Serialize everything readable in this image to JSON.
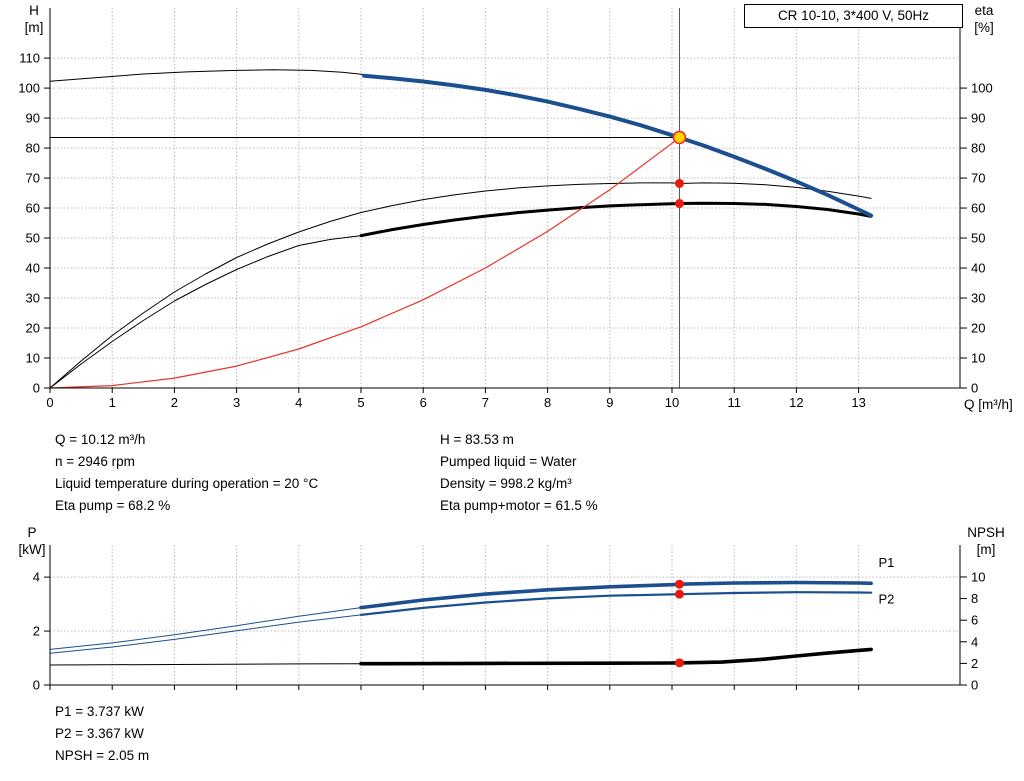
{
  "title_box": {
    "text": "CR 10-10, 3*400 V, 50Hz"
  },
  "axis_labels": {
    "h_line1": "H",
    "h_line2": "[m]",
    "eta_line1": "eta",
    "eta_line2": "[%]",
    "q_label": "Q [m³/h]",
    "p_line1": "P",
    "p_line2": "[kW]",
    "npsh_line1": "NPSH",
    "npsh_line2": "[m]"
  },
  "info_top_left": [
    "Q = 10.12 m³/h",
    "n = 2946 rpm",
    "Liquid temperature during operation = 20 °C",
    "Eta pump = 68.2 %"
  ],
  "info_top_right": [
    "H = 83.53 m",
    "Pumped liquid = Water",
    "Density = 998.2 kg/m³",
    "Eta pump+motor = 61.5 %"
  ],
  "info_bottom": [
    "P1 = 3.737 kW",
    "P2 = 3.367 kW",
    "NPSH = 2.05 m"
  ],
  "colors": {
    "curve_blue": "#1b4f8f",
    "curve_black": "#000000",
    "curve_red": "#e8342a",
    "duty_fill": "#ffd500",
    "duty_stroke": "#e8342a",
    "dot_red": "#e8190f",
    "grid": "#b9b9b9",
    "axis": "#000000",
    "guide_gray": "#555555"
  },
  "duty_point": {
    "Q_m3h": 10.12,
    "H_m": 83.53,
    "eta_pump_pct": 68.2,
    "eta_total_pct": 61.5,
    "P1_kW": 3.737,
    "P2_kW": 3.367,
    "NPSH_m": 2.05,
    "n_rpm": 2946
  },
  "chart_data": [
    {
      "type": "line",
      "name": "qh-eta-chart",
      "title": "CR 10-10, 3*400 V, 50Hz",
      "xlabel": "Q [m³/h]",
      "ylabel_left": "H [m]",
      "ylabel_right": "eta [%]",
      "xlim": [
        0,
        14.63
      ],
      "ylim_left": [
        0,
        126.7
      ],
      "ylim_right": [
        0,
        126.7
      ],
      "x_ticks": [
        0,
        1,
        2,
        3,
        4,
        5,
        6,
        7,
        8,
        9,
        10,
        11,
        12,
        13
      ],
      "show_x_labels": true,
      "y_ticks_left": [
        0,
        10,
        20,
        30,
        40,
        50,
        60,
        70,
        80,
        90,
        100,
        110
      ],
      "y_ticks_right": [
        0,
        10,
        20,
        30,
        40,
        50,
        60,
        70,
        80,
        90,
        100
      ],
      "grid": true,
      "guides": [
        {
          "name": "duty-vertical-line",
          "type": "v",
          "x": 10.12,
          "y_from": 0,
          "y_to": 126.7,
          "color": "#555555",
          "width": 1
        },
        {
          "name": "duty-horizontal-line",
          "type": "h",
          "y": 83.53,
          "x_from": 0,
          "x_to": 10.12,
          "color": "#000000",
          "width": 1
        }
      ],
      "series": [
        {
          "name": "h-curve-lead-in",
          "color": "#000000",
          "width": 1,
          "axis": "left",
          "points": [
            [
              0,
              102.3
            ],
            [
              0.7,
              103.4
            ],
            [
              1.5,
              104.7
            ],
            [
              2.2,
              105.4
            ],
            [
              3,
              105.9
            ],
            [
              3.6,
              106.1
            ],
            [
              4.2,
              105.9
            ],
            [
              4.7,
              105.3
            ],
            [
              5.1,
              104.4
            ]
          ]
        },
        {
          "name": "eta-pump-curve",
          "color": "#000000",
          "width": 1,
          "axis": "right",
          "points": [
            [
              0,
              0
            ],
            [
              0.5,
              9
            ],
            [
              1,
              17.5
            ],
            [
              1.5,
              25
            ],
            [
              2,
              32
            ],
            [
              2.5,
              38
            ],
            [
              3,
              43.5
            ],
            [
              3.5,
              48
            ],
            [
              4,
              52
            ],
            [
              4.5,
              55.5
            ],
            [
              5,
              58.5
            ],
            [
              5.5,
              60.8
            ],
            [
              6,
              62.8
            ],
            [
              6.5,
              64.4
            ],
            [
              7,
              65.7
            ],
            [
              7.5,
              66.7
            ],
            [
              8,
              67.4
            ],
            [
              8.5,
              67.9
            ],
            [
              9,
              68.2
            ],
            [
              9.5,
              68.4
            ],
            [
              10,
              68.4
            ],
            [
              10.12,
              68.2
            ],
            [
              10.5,
              68.4
            ],
            [
              11,
              68.3
            ],
            [
              11.5,
              67.8
            ],
            [
              12,
              66.9
            ],
            [
              12.5,
              65.6
            ],
            [
              13,
              64
            ],
            [
              13.2,
              63.2
            ]
          ]
        },
        {
          "name": "eta-total-curve-lead-in",
          "color": "#000000",
          "width": 1,
          "axis": "right",
          "points": [
            [
              0,
              0
            ],
            [
              0.5,
              8
            ],
            [
              1,
              15.5
            ],
            [
              1.5,
              22.5
            ],
            [
              2,
              29
            ],
            [
              2.5,
              34.5
            ],
            [
              3,
              39.5
            ],
            [
              3.5,
              43.8
            ],
            [
              4,
              47.5
            ],
            [
              4.5,
              49.5
            ],
            [
              5,
              50.8
            ]
          ]
        },
        {
          "name": "eta-total-curve",
          "color": "#000000",
          "width": 3,
          "axis": "right",
          "points": [
            [
              5,
              50.8
            ],
            [
              5.5,
              52.8
            ],
            [
              6,
              54.5
            ],
            [
              6.5,
              56
            ],
            [
              7,
              57.3
            ],
            [
              7.5,
              58.4
            ],
            [
              8,
              59.3
            ],
            [
              8.5,
              60.1
            ],
            [
              9,
              60.7
            ],
            [
              9.5,
              61.1
            ],
            [
              10,
              61.4
            ],
            [
              10.12,
              61.5
            ],
            [
              10.5,
              61.6
            ],
            [
              11,
              61.5
            ],
            [
              11.5,
              61.2
            ],
            [
              12,
              60.5
            ],
            [
              12.5,
              59.5
            ],
            [
              13,
              58
            ],
            [
              13.2,
              57.2
            ]
          ]
        },
        {
          "name": "system-curve",
          "color": "#e8342a",
          "width": 1.2,
          "axis": "left",
          "points": [
            [
              0,
              0
            ],
            [
              1,
              0.8
            ],
            [
              2,
              3.3
            ],
            [
              3,
              7.3
            ],
            [
              4,
              13
            ],
            [
              5,
              20.4
            ],
            [
              6,
              29.4
            ],
            [
              7,
              40
            ],
            [
              8,
              52.2
            ],
            [
              9,
              66.1
            ],
            [
              10,
              81.6
            ],
            [
              10.12,
              83.53
            ]
          ]
        },
        {
          "name": "h-curve",
          "color": "#1b4f8f",
          "width": 4,
          "axis": "left",
          "points": [
            [
              5.05,
              104.1
            ],
            [
              5.5,
              103.3
            ],
            [
              6,
              102.2
            ],
            [
              6.5,
              100.9
            ],
            [
              7,
              99.4
            ],
            [
              7.5,
              97.6
            ],
            [
              8,
              95.5
            ],
            [
              8.5,
              93.1
            ],
            [
              9,
              90.5
            ],
            [
              9.5,
              87.6
            ],
            [
              10,
              84.3
            ],
            [
              10.12,
              83.5
            ],
            [
              10.5,
              80.9
            ],
            [
              11,
              77.1
            ],
            [
              11.5,
              73.1
            ],
            [
              12,
              68.9
            ],
            [
              12.5,
              64.4
            ],
            [
              13,
              59.5
            ],
            [
              13.2,
              57.5
            ]
          ]
        }
      ],
      "markers": [
        {
          "name": "duty-point-marker",
          "x": 10.12,
          "y": 83.53,
          "axis": "left",
          "r": 6,
          "fill": "#ffd500",
          "stroke": "#e8342a",
          "sw": 1.6
        },
        {
          "name": "eta-pump-point",
          "x": 10.12,
          "y": 68.2,
          "axis": "right",
          "r": 4.5,
          "fill": "#e8190f"
        },
        {
          "name": "eta-total-point",
          "x": 10.12,
          "y": 61.5,
          "axis": "right",
          "r": 4.5,
          "fill": "#e8190f"
        }
      ],
      "labels": []
    },
    {
      "type": "line",
      "name": "power-npsh-chart",
      "title": "",
      "xlabel": "",
      "ylabel_left": "P [kW]",
      "ylabel_right": "NPSH [m]",
      "xlim": [
        0,
        14.63
      ],
      "ylim_left": [
        0,
        5.19
      ],
      "ylim_right": [
        0,
        12.96
      ],
      "x_ticks": [
        0,
        1,
        2,
        3,
        4,
        5,
        6,
        7,
        8,
        9,
        10,
        11,
        12,
        13
      ],
      "show_x_labels": false,
      "y_ticks_left": [
        0,
        2,
        4
      ],
      "y_ticks_right": [
        0,
        2,
        4,
        6,
        8,
        10
      ],
      "grid": true,
      "guides": [],
      "series": [
        {
          "name": "p1-curve-lead-in",
          "color": "#1b4f8f",
          "width": 1,
          "axis": "left",
          "points": [
            [
              0,
              1.32
            ],
            [
              1,
              1.56
            ],
            [
              2,
              1.86
            ],
            [
              3,
              2.2
            ],
            [
              4,
              2.55
            ],
            [
              5,
              2.87
            ]
          ]
        },
        {
          "name": "p2-curve-lead-in",
          "color": "#1b4f8f",
          "width": 1,
          "axis": "left",
          "points": [
            [
              0,
              1.18
            ],
            [
              1,
              1.41
            ],
            [
              2,
              1.69
            ],
            [
              3,
              2.01
            ],
            [
              4,
              2.33
            ],
            [
              5,
              2.6
            ]
          ]
        },
        {
          "name": "npsh-curve-lead-in",
          "color": "#000000",
          "width": 1,
          "axis": "right",
          "points": [
            [
              0,
              1.85
            ],
            [
              2,
              1.9
            ],
            [
              4,
              1.95
            ],
            [
              5,
              1.97
            ]
          ]
        },
        {
          "name": "p2-curve",
          "color": "#1b4f8f",
          "width": 2.2,
          "axis": "left",
          "points": [
            [
              5,
              2.6
            ],
            [
              6,
              2.86
            ],
            [
              7,
              3.06
            ],
            [
              8,
              3.21
            ],
            [
              9,
              3.31
            ],
            [
              10,
              3.36
            ],
            [
              10.12,
              3.367
            ],
            [
              11,
              3.41
            ],
            [
              12,
              3.44
            ],
            [
              13,
              3.43
            ],
            [
              13.2,
              3.42
            ]
          ]
        },
        {
          "name": "p1-curve",
          "color": "#1b4f8f",
          "width": 3.6,
          "axis": "left",
          "points": [
            [
              5,
              2.87
            ],
            [
              6,
              3.15
            ],
            [
              7,
              3.37
            ],
            [
              8,
              3.53
            ],
            [
              9,
              3.64
            ],
            [
              10,
              3.72
            ],
            [
              10.12,
              3.737
            ],
            [
              11,
              3.78
            ],
            [
              12,
              3.8
            ],
            [
              13,
              3.78
            ],
            [
              13.2,
              3.77
            ]
          ]
        },
        {
          "name": "npsh-curve",
          "color": "#000000",
          "width": 3.6,
          "axis": "right",
          "points": [
            [
              5,
              1.97
            ],
            [
              7,
              2.0
            ],
            [
              9,
              2.02
            ],
            [
              10,
              2.04
            ],
            [
              10.12,
              2.05
            ],
            [
              10.8,
              2.12
            ],
            [
              11.5,
              2.4
            ],
            [
              12,
              2.68
            ],
            [
              12.5,
              2.95
            ],
            [
              13,
              3.2
            ],
            [
              13.2,
              3.3
            ]
          ]
        }
      ],
      "markers": [
        {
          "name": "p1-point",
          "x": 10.12,
          "y": 3.737,
          "axis": "left",
          "r": 4.5,
          "fill": "#e8190f"
        },
        {
          "name": "p2-point",
          "x": 10.12,
          "y": 3.367,
          "axis": "left",
          "r": 4.5,
          "fill": "#e8190f"
        },
        {
          "name": "npsh-point",
          "x": 10.12,
          "y": 2.05,
          "axis": "right",
          "r": 4.5,
          "fill": "#e8190f"
        }
      ],
      "labels": [
        {
          "name": "p1-label",
          "text": "P1",
          "x": 13.32,
          "y": 4.38,
          "axis": "left",
          "color": "#1b4f8f"
        },
        {
          "name": "p2-label",
          "text": "P2",
          "x": 13.32,
          "y": 3.02,
          "axis": "left",
          "color": "#1b4f8f"
        }
      ]
    }
  ]
}
